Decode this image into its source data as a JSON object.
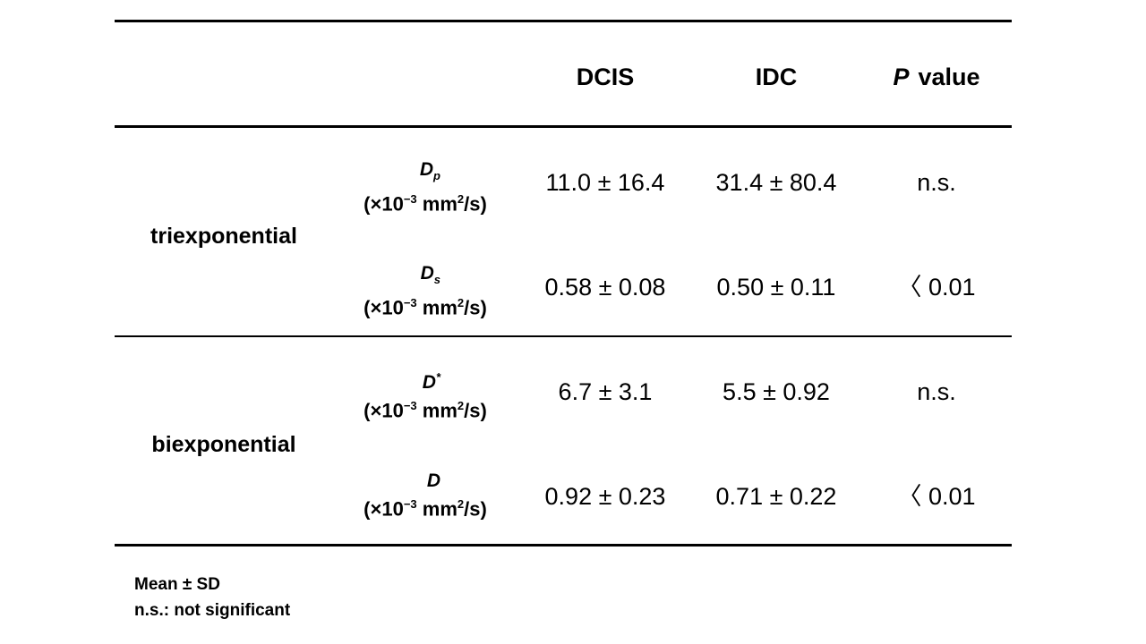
{
  "table": {
    "headers": {
      "dcis": "DCIS",
      "idc": "IDC",
      "p_italic": "P",
      "p_rest": "value"
    },
    "groups": [
      {
        "name": "triexponential",
        "rows": [
          {
            "symbol": "D",
            "symbol_sub": "p",
            "symbol_sup": "",
            "unit_prefix": "(×10",
            "unit_exp": "−3",
            "unit_mid": " mm",
            "unit_exp2": "2",
            "unit_suffix": "/s)",
            "dcis": "11.0 ± 16.4",
            "idc": "31.4 ± 80.4",
            "p": "n.s."
          },
          {
            "symbol": "D",
            "symbol_sub": "s",
            "symbol_sup": "",
            "unit_prefix": "(×10",
            "unit_exp": "−3",
            "unit_mid": " mm",
            "unit_exp2": "2",
            "unit_suffix": "/s)",
            "dcis": "0.58 ± 0.08",
            "idc": "0.50 ± 0.11",
            "p": "〈 0.01"
          }
        ]
      },
      {
        "name": "biexponential",
        "rows": [
          {
            "symbol": "D",
            "symbol_sub": "",
            "symbol_sup": "*",
            "unit_prefix": "(×10",
            "unit_exp": "−3",
            "unit_mid": " mm",
            "unit_exp2": "2",
            "unit_suffix": "/s)",
            "dcis": "6.7 ± 3.1",
            "idc": "5.5 ± 0.92",
            "p": "n.s."
          },
          {
            "symbol": "D",
            "symbol_sub": "",
            "symbol_sup": "",
            "unit_prefix": "(×10",
            "unit_exp": "−3",
            "unit_mid": " mm",
            "unit_exp2": "2",
            "unit_suffix": "/s)",
            "dcis": "0.92 ± 0.23",
            "idc": "0.71 ± 0.22",
            "p": "〈 0.01"
          }
        ]
      }
    ]
  },
  "footnotes": {
    "line1": "Mean ± SD",
    "line2": "n.s.: not significant"
  }
}
